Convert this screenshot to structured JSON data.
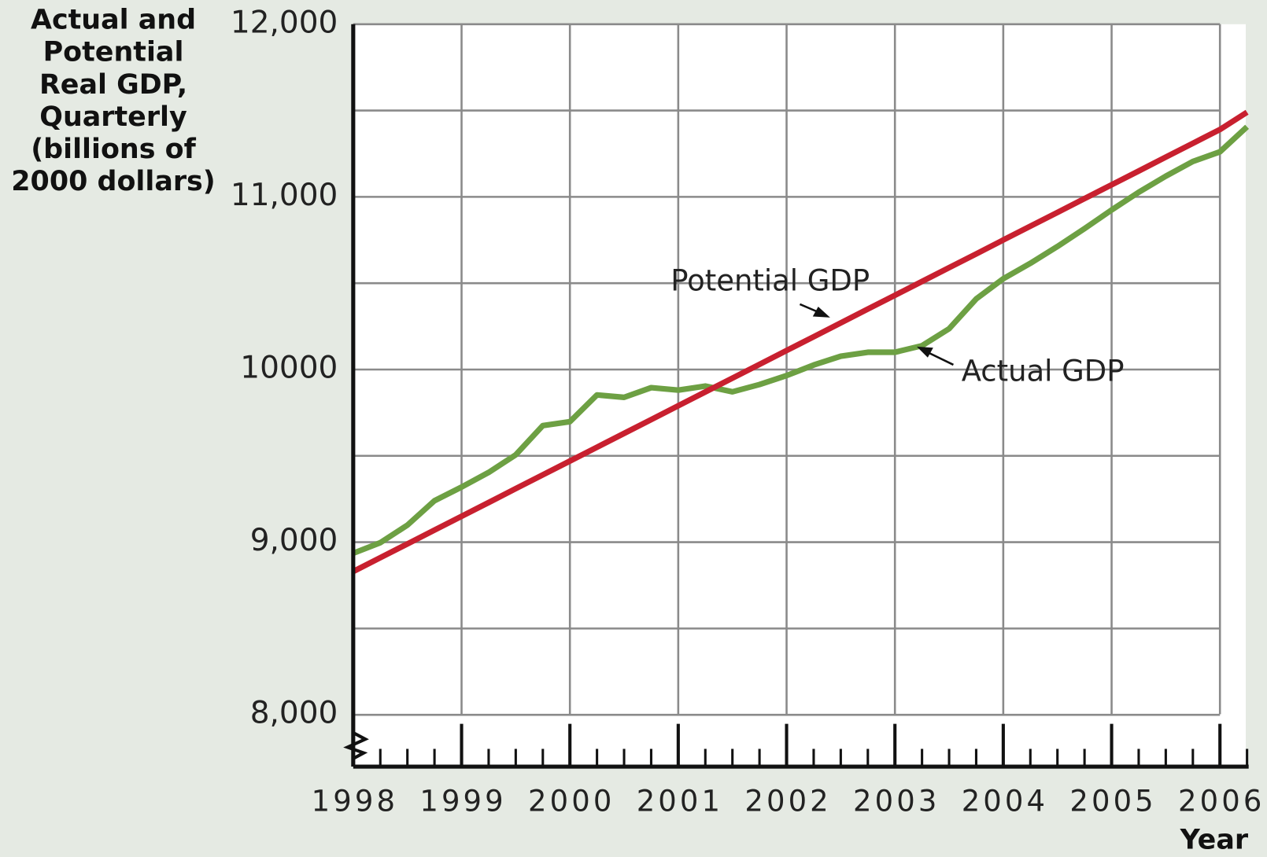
{
  "chart_data": {
    "type": "line",
    "ylabel": [
      "Actual and",
      "Potential",
      "Real GDP,",
      "Quarterly",
      "(billions of",
      "2000 dollars)"
    ],
    "xlabel": "Year",
    "annotations": [
      "Potential GDP",
      "Actual GDP"
    ],
    "xlim": [
      1998,
      2006.25
    ],
    "xticks": [
      1998,
      1999,
      2000,
      2001,
      2002,
      2003,
      2004,
      2005,
      2006
    ],
    "ylim": [
      7700,
      12000
    ],
    "yticks": [
      {
        "value": 8000,
        "label": "8,000"
      },
      {
        "value": 9000,
        "label": "9,000"
      },
      10000,
      {
        "value": 11000,
        "label": "11,000"
      },
      {
        "value": 12000,
        "label": "12,000"
      }
    ],
    "ygrid": [
      8000,
      8500,
      9000,
      9500,
      10000,
      10500,
      11000,
      11500,
      12000
    ],
    "grid": true,
    "x": [
      1998,
      1998.25,
      1998.5,
      1998.75,
      1999,
      1999.25,
      1999.5,
      1999.75,
      2000,
      2000.25,
      2000.5,
      2000.75,
      2001,
      2001.25,
      2001.5,
      2001.75,
      2002,
      2002.25,
      2002.5,
      2002.75,
      2003,
      2003.25,
      2003.5,
      2003.75,
      2004,
      2004.25,
      2004.5,
      2004.75,
      2005,
      2005.25,
      2005.5,
      2005.75,
      2006,
      2006.25
    ],
    "series": [
      {
        "name": "Potential GDP",
        "color": "#c8202f",
        "values": [
          8830,
          8910,
          8990,
          9070,
          9150,
          9230,
          9310,
          9390,
          9470,
          9550,
          9630,
          9710,
          9790,
          9870,
          9950,
          10030,
          10110,
          10190,
          10270,
          10350,
          10430,
          10510,
          10590,
          10670,
          10750,
          10830,
          10910,
          10990,
          11070,
          11150,
          11230,
          11310,
          11390,
          11490
        ]
      },
      {
        "name": "Actual GDP",
        "color": "#6da043",
        "values": [
          8936,
          8997,
          9099,
          9240,
          9319,
          9404,
          9506,
          9675,
          9698,
          9853,
          9839,
          9895,
          9881,
          9904,
          9871,
          9913,
          9965,
          10026,
          10077,
          10100,
          10100,
          10138,
          10236,
          10409,
          10526,
          10615,
          10713,
          10816,
          10924,
          11027,
          11120,
          11205,
          11261,
          11406
        ]
      }
    ]
  }
}
